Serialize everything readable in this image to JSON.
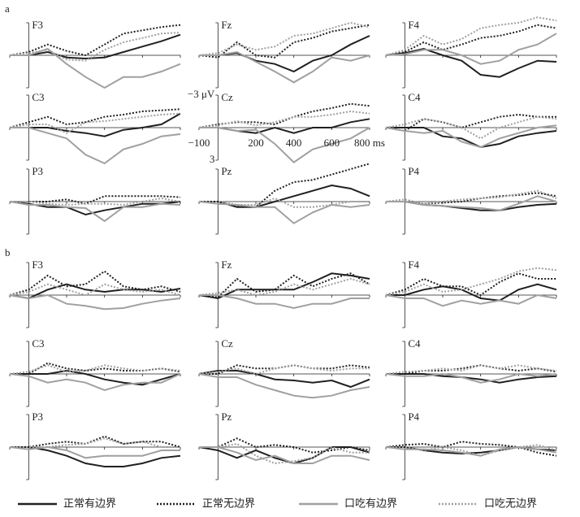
{
  "chart_data": {
    "type": "line",
    "x": [
      -100,
      0,
      100,
      200,
      300,
      400,
      500,
      600,
      700,
      800
    ],
    "xlim": [
      -100,
      800
    ],
    "ylim": [
      -3,
      3
    ],
    "y_inverted": true,
    "xticks": [
      {
        "value": -100,
        "label": "−100"
      },
      200,
      400,
      600,
      {
        "value": 800,
        "label": "800 ms"
      }
    ],
    "yticks": [
      {
        "value": -3,
        "label": "−3 μV"
      },
      3
    ],
    "legend": [
      {
        "name": "正常有边界",
        "color": "#231f20",
        "dash": "solid"
      },
      {
        "name": "正常无边界",
        "color": "#231f20",
        "dash": "dotted"
      },
      {
        "name": "口吃有边界",
        "color": "#a0a0a0",
        "dash": "solid"
      },
      {
        "name": "口吃无边界",
        "color": "#a0a0a0",
        "dash": "dotted"
      }
    ],
    "groups": [
      {
        "label": "a",
        "panels": [
          {
            "title": "F3",
            "series": [
              [
                0,
                0,
                -0.3,
                0.2,
                0.3,
                0.2,
                -0.3,
                -0.8,
                -1.3,
                -1.9
              ],
              [
                0,
                -0.3,
                -1,
                -0.4,
                0,
                -1,
                -2,
                -2.3,
                -2.6,
                -2.8
              ],
              [
                0,
                0,
                -0.6,
                0.8,
                2,
                3,
                2,
                2,
                1.5,
                0.8
              ],
              [
                0,
                -0.2,
                -0.5,
                0.4,
                0.5,
                -0.5,
                -1.2,
                -1.6,
                -2,
                -2.1
              ]
            ]
          },
          {
            "title": "Fz",
            "series": [
              [
                0,
                0,
                -0.2,
                0.5,
                0.8,
                1.5,
                0.5,
                0,
                -1,
                -1.8
              ],
              [
                0,
                0.2,
                -1.2,
                0,
                0.2,
                -1.2,
                -1.6,
                -2.2,
                -2.5,
                -2.8
              ],
              [
                0,
                0,
                -0.3,
                0.6,
                1.5,
                2.5,
                1.5,
                0.2,
                0.5,
                0
              ],
              [
                0,
                -0.2,
                -1,
                -0.5,
                -0.8,
                -1.8,
                -2,
                -2.5,
                -3,
                -2.6
              ]
            ]
          },
          {
            "title": "F4",
            "series": [
              [
                0,
                -0.2,
                -0.6,
                0,
                0.5,
                1.8,
                2,
                1.2,
                0.5,
                0.6
              ],
              [
                0,
                -0.3,
                -1.2,
                -0.5,
                -1,
                -1.6,
                -1.8,
                -2.2,
                -2.8,
                -2.5
              ],
              [
                0,
                -0.1,
                -0.5,
                -0.5,
                0,
                0.8,
                0.5,
                -0.5,
                -1,
                -2
              ],
              [
                0,
                -0.5,
                -1.8,
                -1,
                -1.5,
                -2.5,
                -2.8,
                -3,
                -3.5,
                -3.2
              ]
            ]
          },
          {
            "title": "C3",
            "series": [
              [
                0,
                0,
                0,
                0.3,
                0.5,
                0.8,
                0.2,
                0,
                -0.3,
                -1.3
              ],
              [
                0,
                -0.5,
                -1,
                -0.3,
                -0.5,
                -1,
                -1.2,
                -1.5,
                -1.6,
                -1.7
              ],
              [
                0,
                0,
                0.5,
                1,
                2.5,
                3.3,
                2,
                1.5,
                0.8,
                0.6
              ],
              [
                0,
                -0.3,
                -0.3,
                0.5,
                -0.5,
                -0.6,
                -0.8,
                -1,
                -1.2,
                -1.3
              ]
            ]
          },
          {
            "title": "Cz",
            "series": [
              [
                0,
                0,
                0.3,
                0.5,
                0,
                0.5,
                0,
                0,
                -0.5,
                -0.8
              ],
              [
                0,
                -0.3,
                -0.5,
                -0.5,
                -0.3,
                -1,
                -1.5,
                -1.8,
                -2.2,
                -2
              ],
              [
                0,
                0,
                0.3,
                0.2,
                1.5,
                3.2,
                2,
                1.5,
                1,
                0
              ],
              [
                0,
                -0.2,
                -0.6,
                -0.2,
                -0.5,
                -1,
                -1,
                -1.2,
                -1.5,
                -1.3
              ]
            ]
          },
          {
            "title": "C4",
            "series": [
              [
                0,
                0,
                0,
                0.8,
                1,
                1.8,
                1.5,
                0.8,
                0.5,
                0.3
              ],
              [
                0,
                0.3,
                -0.8,
                -0.5,
                0,
                -0.5,
                -1,
                -1.2,
                -1,
                -1
              ],
              [
                0,
                0.3,
                0.5,
                0.3,
                1.3,
                1.8,
                1,
                0.5,
                0,
                -0.2
              ],
              [
                0,
                -0.3,
                -0.8,
                -0.5,
                0,
                1,
                0,
                -0.5,
                -1,
                -0.8
              ]
            ]
          },
          {
            "title": "P3",
            "series": [
              [
                0,
                0.2,
                0.5,
                0.5,
                1.2,
                0.8,
                0.5,
                0.2,
                0.2,
                0
              ],
              [
                0,
                0,
                0,
                -0.2,
                0.2,
                -0.5,
                -0.5,
                -0.5,
                -0.5,
                -0.4
              ],
              [
                0,
                0.3,
                0.3,
                0.5,
                0.6,
                1.8,
                0.5,
                0.5,
                0.2,
                0.3
              ],
              [
                0,
                0,
                0.2,
                0.3,
                0.2,
                0.2,
                0.3,
                0,
                -0.3,
                0
              ]
            ]
          },
          {
            "title": "Pz",
            "series": [
              [
                0,
                0,
                0.5,
                0.5,
                0,
                -0.5,
                -1,
                -1.5,
                -1.2,
                -0.5
              ],
              [
                0,
                0,
                0.4,
                0.5,
                -1,
                -1.8,
                -2,
                -2.5,
                -3,
                -3.5
              ],
              [
                0,
                0.2,
                0.3,
                0.5,
                0.5,
                2,
                1,
                0.3,
                0.5,
                0.3
              ],
              [
                0,
                0,
                0.3,
                0.3,
                -0.3,
                0.5,
                0.5,
                0.3,
                0,
                0
              ]
            ]
          },
          {
            "title": "P4",
            "series": [
              [
                0,
                0,
                0.3,
                0.4,
                0.6,
                0.8,
                0.8,
                0.5,
                0.3,
                0.2
              ],
              [
                0,
                0,
                0.2,
                0.1,
                0,
                -0.3,
                -0.5,
                -0.6,
                -0.8,
                -0.5
              ],
              [
                0,
                0,
                0.3,
                0.4,
                0.5,
                0.6,
                0.8,
                0.2,
                -0.5,
                0
              ],
              [
                0,
                -0.2,
                0.2,
                0,
                -0.2,
                -0.3,
                -0.4,
                -0.7,
                -1,
                -0.3
              ]
            ]
          }
        ]
      },
      {
        "label": "b",
        "panels": [
          {
            "title": "F3",
            "series": [
              [
                0,
                0.3,
                -0.5,
                -1,
                -0.5,
                -0.3,
                -0.5,
                -0.5,
                -0.3,
                -0.6
              ],
              [
                0,
                -0.5,
                -1.8,
                -0.8,
                -1,
                -2.2,
                -0.8,
                -0.5,
                -0.8,
                -0.3
              ],
              [
                0,
                0.3,
                0,
                0.8,
                1,
                1.3,
                1.2,
                0.8,
                0.5,
                0.3
              ],
              [
                0,
                -0.3,
                -1,
                -0.5,
                0,
                -1,
                -0.5,
                -0.3,
                -0.5,
                0
              ]
            ]
          },
          {
            "title": "Fz",
            "series": [
              [
                0,
                0.3,
                -0.5,
                -0.5,
                -0.5,
                -0.5,
                -1.2,
                -2,
                -1.8,
                -1.5
              ],
              [
                0,
                0.2,
                -1.5,
                -0.3,
                -0.5,
                -1.8,
                -0.8,
                -1.5,
                -2,
                -1
              ],
              [
                0,
                0,
                0.3,
                0.8,
                0.8,
                1.2,
                0.8,
                0.8,
                0.3,
                0.3
              ],
              [
                0,
                -0.2,
                -0.5,
                0,
                -0.3,
                -1,
                -0.5,
                -1,
                -1.5,
                -1
              ]
            ]
          },
          {
            "title": "F4",
            "series": [
              [
                0,
                0,
                -0.5,
                -0.8,
                -0.5,
                0.3,
                0.5,
                -0.5,
                -1,
                -0.5
              ],
              [
                0,
                -0.5,
                -1.5,
                -0.8,
                -0.8,
                0,
                -1.2,
                -2,
                -1.5,
                -1.5
              ],
              [
                0,
                0.3,
                0.3,
                1,
                0.5,
                0.8,
                0.5,
                0.8,
                0,
                0.3
              ],
              [
                0,
                -0.3,
                -1,
                -0.3,
                -0.5,
                -1,
                -1.5,
                -2.2,
                -2.5,
                -2.3
              ]
            ]
          },
          {
            "title": "C3",
            "series": [
              [
                0,
                0,
                0,
                -0.3,
                0,
                0.5,
                0.8,
                1,
                0.5,
                0
              ],
              [
                0,
                0,
                -1,
                -0.5,
                -0.3,
                -0.5,
                -0.3,
                -0.3,
                -0.5,
                -0.2
              ],
              [
                0,
                0.2,
                0.8,
                0.5,
                0.8,
                1.5,
                1,
                0.8,
                0.8,
                0
              ],
              [
                0,
                -0.2,
                -0.8,
                -0.2,
                -0.3,
                -0.8,
                -0.5,
                -0.3,
                -0.5,
                -0.3
              ]
            ]
          },
          {
            "title": "Cz",
            "series": [
              [
                0,
                -0.3,
                -0.3,
                0,
                0.5,
                0.6,
                0.8,
                0.6,
                1.2,
                0.5
              ],
              [
                0,
                0,
                -0.8,
                -0.5,
                -0.5,
                -0.8,
                -0.5,
                -0.5,
                -0.8,
                -0.6
              ],
              [
                0,
                0.3,
                0.3,
                1,
                1.5,
                2,
                2.2,
                2,
                1.5,
                1.2
              ],
              [
                0,
                -0.2,
                -0.5,
                0,
                -0.5,
                -0.8,
                -0.5,
                -0.3,
                -0.5,
                -0.5
              ]
            ]
          },
          {
            "title": "C4",
            "series": [
              [
                0,
                0,
                0,
                0.2,
                0.3,
                0.5,
                0.8,
                0.5,
                0.3,
                0.2
              ],
              [
                0,
                0,
                -0.3,
                -0.3,
                -0.5,
                -0.8,
                -0.5,
                -0.3,
                -0.5,
                -0.2
              ],
              [
                0,
                0.2,
                0.2,
                0,
                0.3,
                0.8,
                0.5,
                0,
                0.2,
                0
              ],
              [
                0,
                -0.2,
                -0.3,
                -0.5,
                -0.3,
                -0.8,
                -0.5,
                -0.8,
                -0.5,
                -0.3
              ]
            ]
          },
          {
            "title": "P3",
            "series": [
              [
                0,
                0,
                0.3,
                0.8,
                1.5,
                1.8,
                1.8,
                1.5,
                1,
                0.8
              ],
              [
                0,
                0,
                -0.3,
                -0.5,
                -0.3,
                -1,
                -0.3,
                -0.5,
                -0.5,
                0
              ],
              [
                0,
                0.2,
                0,
                0.3,
                1,
                0.8,
                0.8,
                0.8,
                0.3,
                0.3
              ],
              [
                0,
                0,
                0,
                -0.2,
                -0.3,
                -0.8,
                -0.3,
                -0.5,
                0,
                0
              ]
            ]
          },
          {
            "title": "Pz",
            "series": [
              [
                0,
                0.3,
                1,
                0.3,
                1,
                1.5,
                1,
                0,
                0,
                0.5
              ],
              [
                0,
                0,
                -0.8,
                0,
                -0.2,
                0,
                0.5,
                0.3,
                0,
                0.3
              ],
              [
                0,
                0,
                0.5,
                1.2,
                0.8,
                1.5,
                1.5,
                0.8,
                0.8,
                1.2
              ],
              [
                0,
                0,
                -0.3,
                0.8,
                1.5,
                1.3,
                1,
                0,
                0.5,
                0.5
              ]
            ]
          },
          {
            "title": "P4",
            "series": [
              [
                0,
                0,
                0.3,
                0.5,
                0.6,
                0.5,
                0.3,
                0,
                0.2,
                0.3
              ],
              [
                0,
                -0.2,
                -0.3,
                0,
                -0.5,
                -0.3,
                -0.2,
                0,
                0.5,
                0.8
              ],
              [
                0,
                0.2,
                0.2,
                0.3,
                0.5,
                0.8,
                0.2,
                0,
                0.2,
                0.5
              ],
              [
                0,
                0,
                0.3,
                0,
                0.3,
                0.8,
                0.3,
                0,
                -0.2,
                0.3
              ]
            ]
          }
        ]
      }
    ]
  }
}
